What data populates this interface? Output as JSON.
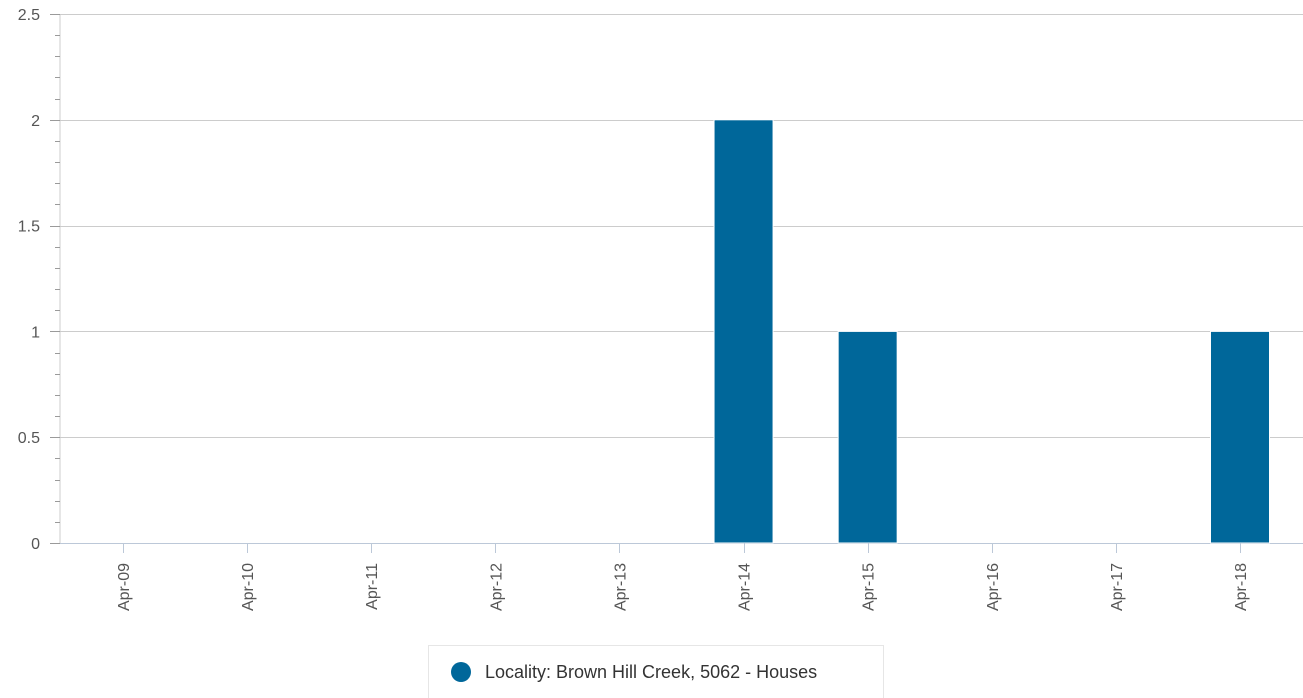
{
  "chart_data": {
    "type": "bar",
    "categories": [
      "Apr-09",
      "Apr-10",
      "Apr-11",
      "Apr-12",
      "Apr-13",
      "Apr-14",
      "Apr-15",
      "Apr-16",
      "Apr-17",
      "Apr-18"
    ],
    "series": [
      {
        "name": "Locality: Brown Hill Creek, 5062 - Houses",
        "values": [
          0,
          0,
          0,
          0,
          0,
          2,
          1,
          0,
          0,
          1
        ]
      }
    ],
    "y_ticks": [
      "0",
      "0.5",
      "1",
      "1.5",
      "2",
      "2.5"
    ],
    "ylim": [
      0,
      2.5
    ],
    "grid": true,
    "legend_position": "bottom-center",
    "colors": {
      "bar": "#00679a",
      "grid": "#cccccc",
      "axis": "#bcc8d8",
      "minor_tick": "#9a9a9a"
    }
  }
}
